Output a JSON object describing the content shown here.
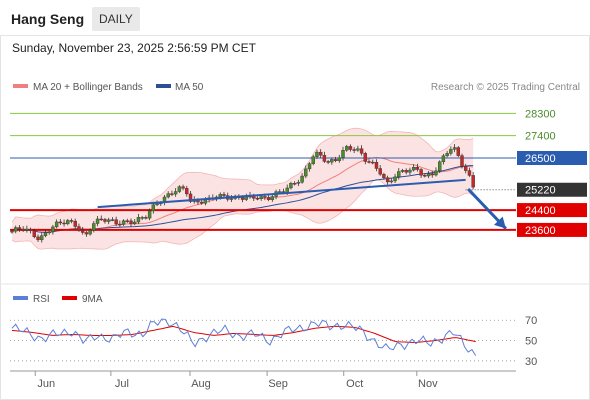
{
  "header": {
    "title": "Hang Seng",
    "period": "DAILY"
  },
  "timestamp": "Sunday, November 23, 2025 2:56:59 PM CET",
  "copyright": "Research © 2025 Trading Central",
  "colors": {
    "bollinger": "#f08080",
    "ma50": "#2c4f96",
    "support": "#e00000",
    "resistance": "#8cc63f",
    "pivot": "#2a5db0",
    "price_badge": "#333333",
    "rsi": "#5b7fd6",
    "rsi_ma": "#e00000",
    "arrow": "#2a5db0",
    "candle_up": "#4a8c2a",
    "candle_down": "#c62828"
  },
  "chart_data": [
    {
      "type": "candlestick",
      "legend": [
        "MA 20 + Bollinger Bands",
        "MA 50"
      ],
      "x_labels": [
        "Jun",
        "Jul",
        "Aug",
        "Sep",
        "Oct",
        "Nov"
      ],
      "ylim": [
        21500,
        29000
      ],
      "levels": [
        {
          "value": 28300,
          "label": "28300",
          "kind": "resistance"
        },
        {
          "value": 27400,
          "label": "27400",
          "kind": "resistance"
        },
        {
          "value": 26500,
          "label": "26500",
          "kind": "pivot"
        },
        {
          "value": 25220,
          "label": "25220",
          "kind": "last"
        },
        {
          "value": 24400,
          "label": "24400",
          "kind": "support"
        },
        {
          "value": 23600,
          "label": "23600",
          "kind": "support"
        }
      ],
      "trendline": {
        "from": [
          0.17,
          24520
        ],
        "to": [
          0.9,
          25620
        ]
      },
      "arrow": {
        "from": [
          0.905,
          25250
        ],
        "to": [
          0.98,
          23650
        ]
      },
      "anchors": [
        [
          0.0,
          23550
        ],
        [
          0.02,
          23620
        ],
        [
          0.04,
          23450
        ],
        [
          0.055,
          23250
        ],
        [
          0.07,
          23600
        ],
        [
          0.085,
          23800
        ],
        [
          0.11,
          23900
        ],
        [
          0.13,
          23750
        ],
        [
          0.145,
          23350
        ],
        [
          0.16,
          23900
        ],
        [
          0.18,
          24000
        ],
        [
          0.205,
          23850
        ],
        [
          0.22,
          23950
        ],
        [
          0.245,
          24000
        ],
        [
          0.265,
          24100
        ],
        [
          0.275,
          24350
        ],
        [
          0.29,
          24700
        ],
        [
          0.305,
          24950
        ],
        [
          0.315,
          25150
        ],
        [
          0.33,
          25300
        ],
        [
          0.345,
          25200
        ],
        [
          0.355,
          24650
        ],
        [
          0.37,
          24700
        ],
        [
          0.39,
          24850
        ],
        [
          0.405,
          25050
        ],
        [
          0.42,
          24950
        ],
        [
          0.44,
          24800
        ],
        [
          0.46,
          24900
        ],
        [
          0.485,
          25000
        ],
        [
          0.505,
          24850
        ],
        [
          0.525,
          25000
        ],
        [
          0.545,
          25250
        ],
        [
          0.56,
          25550
        ],
        [
          0.575,
          25750
        ],
        [
          0.585,
          26100
        ],
        [
          0.595,
          26550
        ],
        [
          0.605,
          26600
        ],
        [
          0.615,
          26500
        ],
        [
          0.625,
          26300
        ],
        [
          0.64,
          26400
        ],
        [
          0.655,
          26800
        ],
        [
          0.665,
          26950
        ],
        [
          0.675,
          26900
        ],
        [
          0.69,
          26700
        ],
        [
          0.7,
          26400
        ],
        [
          0.715,
          26250
        ],
        [
          0.73,
          26000
        ],
        [
          0.745,
          25500
        ],
        [
          0.76,
          25800
        ],
        [
          0.775,
          25900
        ],
        [
          0.79,
          26000
        ],
        [
          0.805,
          26050
        ],
        [
          0.82,
          25800
        ],
        [
          0.835,
          25900
        ],
        [
          0.85,
          26300
        ],
        [
          0.865,
          26750
        ],
        [
          0.875,
          26900
        ],
        [
          0.885,
          26600
        ],
        [
          0.895,
          26200
        ],
        [
          0.905,
          25900
        ],
        [
          0.915,
          25400
        ]
      ]
    },
    {
      "type": "line",
      "legend": [
        "RSI",
        "9MA"
      ],
      "ylim": [
        25,
        80
      ],
      "y_ticks": [
        70,
        50,
        30
      ],
      "rsi_anchors": [
        [
          0.0,
          62
        ],
        [
          0.03,
          58
        ],
        [
          0.06,
          52
        ],
        [
          0.09,
          56
        ],
        [
          0.12,
          60
        ],
        [
          0.145,
          48
        ],
        [
          0.17,
          55
        ],
        [
          0.2,
          52
        ],
        [
          0.23,
          58
        ],
        [
          0.26,
          57
        ],
        [
          0.28,
          66
        ],
        [
          0.31,
          70
        ],
        [
          0.33,
          64
        ],
        [
          0.36,
          46
        ],
        [
          0.39,
          56
        ],
        [
          0.42,
          60
        ],
        [
          0.45,
          55
        ],
        [
          0.48,
          56
        ],
        [
          0.51,
          50
        ],
        [
          0.54,
          58
        ],
        [
          0.57,
          62
        ],
        [
          0.6,
          67
        ],
        [
          0.63,
          64
        ],
        [
          0.66,
          66
        ],
        [
          0.69,
          60
        ],
        [
          0.72,
          50
        ],
        [
          0.745,
          40
        ],
        [
          0.77,
          46
        ],
        [
          0.8,
          50
        ],
        [
          0.83,
          47
        ],
        [
          0.86,
          55
        ],
        [
          0.875,
          58
        ],
        [
          0.895,
          47
        ],
        [
          0.91,
          40
        ],
        [
          0.92,
          37
        ]
      ],
      "ma_anchors": [
        [
          0.0,
          60
        ],
        [
          0.04,
          58
        ],
        [
          0.08,
          55
        ],
        [
          0.12,
          56
        ],
        [
          0.16,
          55
        ],
        [
          0.2,
          55
        ],
        [
          0.24,
          56
        ],
        [
          0.28,
          60
        ],
        [
          0.32,
          64
        ],
        [
          0.36,
          58
        ],
        [
          0.4,
          55
        ],
        [
          0.44,
          57
        ],
        [
          0.48,
          56
        ],
        [
          0.52,
          55
        ],
        [
          0.56,
          58
        ],
        [
          0.6,
          62
        ],
        [
          0.64,
          64
        ],
        [
          0.68,
          63
        ],
        [
          0.72,
          57
        ],
        [
          0.76,
          49
        ],
        [
          0.8,
          48
        ],
        [
          0.84,
          50
        ],
        [
          0.88,
          53
        ],
        [
          0.92,
          49
        ]
      ]
    }
  ]
}
